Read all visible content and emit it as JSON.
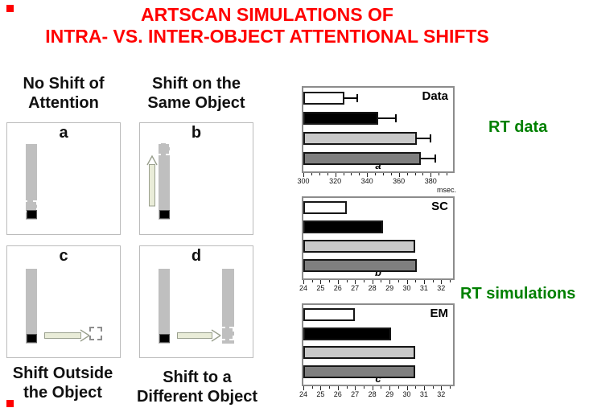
{
  "title": {
    "line1": "ARTSCAN SIMULATIONS OF",
    "line2": "INTRA- VS. INTER-OBJECT ATTENTIONAL SHIFTS"
  },
  "colors": {
    "title": "#ff0000",
    "bullet": "#ff0000",
    "side_label": "#008000",
    "object_bar": "#bfbfbf",
    "cue": "#000000",
    "arrow_fill": "#e9ecd8",
    "arrow_stroke": "#9aa08e",
    "chart_border": "#8c8c8c"
  },
  "panels": [
    {
      "letter": "a",
      "caption_line1": "No Shift of",
      "caption_line2": "Attention"
    },
    {
      "letter": "b",
      "caption_line1": "Shift on the",
      "caption_line2": "Same Object"
    },
    {
      "letter": "c",
      "caption_line1": "Shift Outside",
      "caption_line2": "the Object"
    },
    {
      "letter": "d",
      "caption_line1": "Shift to a",
      "caption_line2": "Different Object"
    }
  ],
  "side_labels": {
    "rt_data": "RT data",
    "rt_simulations": "RT simulations"
  },
  "chart_data": [
    {
      "type": "bar",
      "orientation": "horizontal",
      "corner_label": "Data",
      "panel_letter": "a",
      "x_axis": {
        "label": "msec.",
        "min": 300,
        "max": 392,
        "major_ticks": [
          300,
          320,
          340,
          360,
          380
        ],
        "minor_tick_step": 5
      },
      "series": [
        {
          "name": "white",
          "color": "#ffffff",
          "value": 326,
          "error": 8
        },
        {
          "name": "black",
          "color": "#000000",
          "value": 347,
          "error": 11
        },
        {
          "name": "light-gray",
          "color": "#c9c9c9",
          "value": 371,
          "error": 9
        },
        {
          "name": "dark-gray",
          "color": "#7f7f7f",
          "value": 374,
          "error": 9
        }
      ]
    },
    {
      "type": "bar",
      "orientation": "horizontal",
      "corner_label": "SC",
      "panel_letter": "b",
      "x_axis": {
        "min": 24,
        "max": 32.5,
        "major_ticks": [
          24,
          25,
          26,
          27,
          28,
          29,
          30,
          31,
          32
        ],
        "minor_tick_step": 0.5
      },
      "series": [
        {
          "name": "white",
          "color": "#ffffff",
          "value": 26.5
        },
        {
          "name": "black",
          "color": "#000000",
          "value": 28.6
        },
        {
          "name": "light-gray",
          "color": "#c9c9c9",
          "value": 30.5
        },
        {
          "name": "dark-gray",
          "color": "#7f7f7f",
          "value": 30.6
        }
      ]
    },
    {
      "type": "bar",
      "orientation": "horizontal",
      "corner_label": "EM",
      "panel_letter": "c",
      "x_axis": {
        "min": 24,
        "max": 32.5,
        "major_ticks": [
          24,
          25,
          26,
          27,
          28,
          29,
          30,
          31,
          32
        ],
        "minor_tick_step": 0.5
      },
      "series": [
        {
          "name": "white",
          "color": "#ffffff",
          "value": 27.0
        },
        {
          "name": "black",
          "color": "#000000",
          "value": 29.1
        },
        {
          "name": "light-gray",
          "color": "#c9c9c9",
          "value": 30.5
        },
        {
          "name": "dark-gray",
          "color": "#7f7f7f",
          "value": 30.5
        }
      ]
    }
  ]
}
